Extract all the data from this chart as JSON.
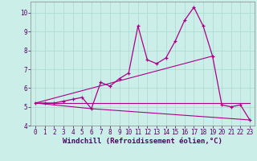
{
  "xlabel": "Windchill (Refroidissement éolien,°C)",
  "background_color": "#cceee8",
  "grid_color": "#aad8d2",
  "line_color": "#aa0088",
  "xlim": [
    -0.5,
    23.5
  ],
  "ylim": [
    4,
    10.6
  ],
  "xticks": [
    0,
    1,
    2,
    3,
    4,
    5,
    6,
    7,
    8,
    9,
    10,
    11,
    12,
    13,
    14,
    15,
    16,
    17,
    18,
    19,
    20,
    21,
    22,
    23
  ],
  "yticks": [
    4,
    5,
    6,
    7,
    8,
    9,
    10
  ],
  "series1_x": [
    0,
    1,
    2,
    3,
    4,
    5,
    6,
    7,
    8,
    9,
    10,
    11,
    12,
    13,
    14,
    15,
    16,
    17,
    18,
    19,
    20,
    21,
    22,
    23
  ],
  "series1_y": [
    5.2,
    5.2,
    5.2,
    5.3,
    5.4,
    5.5,
    4.9,
    6.3,
    6.1,
    6.5,
    6.8,
    9.3,
    7.5,
    7.3,
    7.6,
    8.5,
    9.6,
    10.3,
    9.3,
    7.7,
    5.1,
    5.0,
    5.1,
    4.3
  ],
  "series2_x": [
    0,
    23
  ],
  "series2_y": [
    5.2,
    5.2
  ],
  "series3_x": [
    0,
    19
  ],
  "series3_y": [
    5.2,
    7.7
  ],
  "series4_x": [
    0,
    6,
    23
  ],
  "series4_y": [
    5.2,
    4.9,
    4.3
  ],
  "tick_fontsize": 5.5,
  "label_fontsize": 6.5
}
